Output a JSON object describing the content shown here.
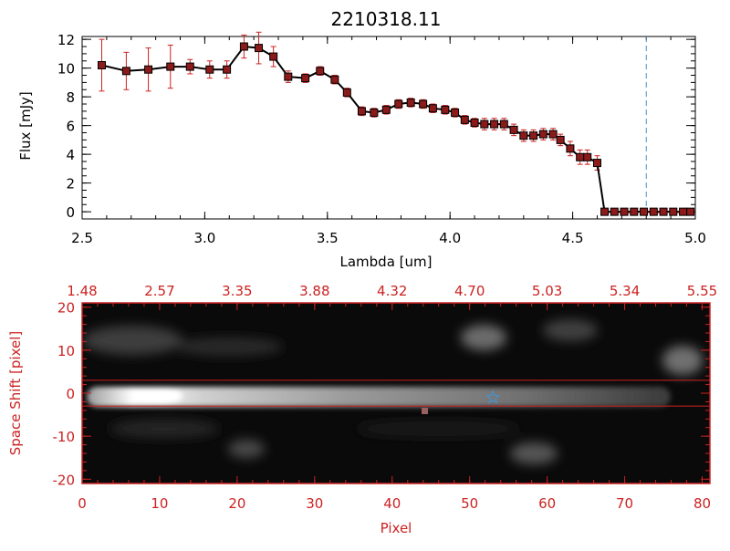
{
  "chart_data": [
    {
      "type": "line",
      "title": "2210318.11",
      "xlabel": "Lambda [um]",
      "ylabel": "Flux [mJy]",
      "xlim": [
        2.5,
        5.0
      ],
      "ylim": [
        -0.5,
        12.2
      ],
      "x_ticks": [
        2.5,
        3.0,
        3.5,
        4.0,
        4.5,
        5.0
      ],
      "x_tick_labels": [
        "2.5",
        "3.0",
        "3.5",
        "4.0",
        "4.5",
        "5.0"
      ],
      "y_ticks": [
        0,
        2,
        4,
        6,
        8,
        10,
        12
      ],
      "y_tick_labels": [
        "0",
        "2",
        "4",
        "6",
        "8",
        "10",
        "12"
      ],
      "line_color": "#000000",
      "error_color": "#cc2222",
      "marker_color": "#8b1a1a",
      "reference_line": {
        "x": 4.8,
        "color": "#4a90c8",
        "style": "dashed"
      },
      "series": [
        {
          "name": "flux",
          "x": [
            2.58,
            2.68,
            2.77,
            2.86,
            2.94,
            3.02,
            3.09,
            3.16,
            3.22,
            3.28,
            3.34,
            3.41,
            3.47,
            3.53,
            3.58,
            3.64,
            3.69,
            3.74,
            3.79,
            3.84,
            3.89,
            3.93,
            3.98,
            4.02,
            4.06,
            4.1,
            4.14,
            4.18,
            4.22,
            4.26,
            4.3,
            4.34,
            4.38,
            4.42,
            4.45,
            4.49,
            4.53,
            4.56,
            4.6,
            4.63,
            4.67,
            4.71,
            4.75,
            4.79,
            4.83,
            4.87,
            4.91,
            4.95,
            4.98
          ],
          "y": [
            10.2,
            9.8,
            9.9,
            10.1,
            10.1,
            9.9,
            9.9,
            11.5,
            11.4,
            10.8,
            9.4,
            9.3,
            9.8,
            9.2,
            8.3,
            7.0,
            6.9,
            7.1,
            7.5,
            7.6,
            7.5,
            7.2,
            7.1,
            6.9,
            6.4,
            6.2,
            6.1,
            6.1,
            6.1,
            5.7,
            5.3,
            5.3,
            5.4,
            5.4,
            5.0,
            4.4,
            3.8,
            3.8,
            3.4,
            0.0,
            0.0,
            0.0,
            0.0,
            0.0,
            0.0,
            0.0,
            0.0,
            0.0,
            0.0
          ],
          "yerr": [
            1.8,
            1.3,
            1.5,
            1.5,
            0.5,
            0.6,
            0.6,
            0.8,
            1.1,
            0.7,
            0.4,
            0.3,
            0.3,
            0.3,
            0.3,
            0.3,
            0.3,
            0.3,
            0.3,
            0.3,
            0.3,
            0.3,
            0.3,
            0.3,
            0.3,
            0.3,
            0.4,
            0.4,
            0.4,
            0.4,
            0.4,
            0.4,
            0.4,
            0.4,
            0.4,
            0.5,
            0.5,
            0.5,
            0.5,
            0.0,
            0.0,
            0.0,
            0.0,
            0.0,
            0.0,
            0.0,
            0.0,
            0.0,
            0.0
          ]
        }
      ]
    },
    {
      "type": "heatmap",
      "xlabel": "Pixel",
      "ylabel": "Space Shift [pixel]",
      "xlim": [
        0,
        81
      ],
      "ylim": [
        -21,
        21
      ],
      "x_ticks": [
        0,
        10,
        20,
        30,
        40,
        50,
        60,
        70,
        80
      ],
      "x_tick_labels": [
        "0",
        "10",
        "20",
        "30",
        "40",
        "50",
        "60",
        "70",
        "80"
      ],
      "y_ticks": [
        -20,
        -10,
        0,
        10,
        20
      ],
      "y_tick_labels": [
        "-20",
        "-10",
        "0",
        "10",
        "20"
      ],
      "top_axis_labels": [
        "1.48",
        "2.57",
        "3.35",
        "3.88",
        "4.32",
        "4.70",
        "5.03",
        "5.34",
        "5.55"
      ],
      "axis_color": "#cc2222",
      "extraction_window": [
        -3,
        3
      ],
      "star_marker": {
        "pixel": 53,
        "shift": -1,
        "color": "#4a90c8"
      },
      "colormap": "grayscale"
    }
  ]
}
